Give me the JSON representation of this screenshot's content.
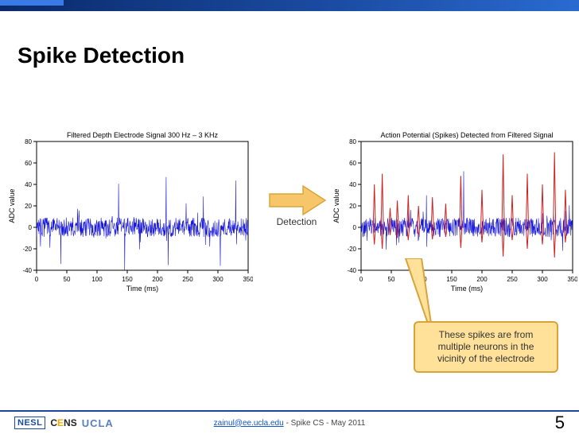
{
  "title": "Spike Detection",
  "chart_left": {
    "type": "line",
    "title": "Filtered Depth Electrode Signal 300 Hz – 3 KHz",
    "xlabel": "Time (ms)",
    "ylabel": "ADC value",
    "title_fontsize": 9,
    "label_fontsize": 9,
    "tick_fontsize": 8,
    "xlim": [
      0,
      350
    ],
    "ylim": [
      -40,
      80
    ],
    "xtick_step": 50,
    "ytick_step": 20,
    "line_color": "#1818d8",
    "line_width": 0.6,
    "background_color": "#ffffff",
    "border_color": "#000000"
  },
  "chart_right": {
    "type": "line",
    "title": "Action Potential (Spikes) Detected from Filtered Signal",
    "xlabel": "Time (ms)",
    "ylabel": "ADC value",
    "title_fontsize": 9,
    "label_fontsize": 9,
    "tick_fontsize": 8,
    "xlim": [
      0,
      350
    ],
    "ylim": [
      -40,
      80
    ],
    "xtick_step": 50,
    "ytick_step": 20,
    "line_color": "#1818d8",
    "spike_color": "#cc2222",
    "line_width": 0.6,
    "spike_width": 1.0,
    "background_color": "#ffffff",
    "border_color": "#000000",
    "spike_positions_ms": [
      22,
      35,
      48,
      60,
      78,
      95,
      118,
      140,
      165,
      200,
      235,
      250,
      275,
      300,
      320,
      338
    ],
    "spike_heights": [
      40,
      50,
      18,
      25,
      30,
      20,
      28,
      22,
      48,
      35,
      68,
      30,
      50,
      40,
      70,
      35
    ]
  },
  "arrow": {
    "label": "Detection",
    "fill_color": "#f7c66b",
    "text_color": "#333333",
    "fontsize": 12
  },
  "callout": {
    "text": "These spikes are from multiple neurons in the vicinity of the electrode",
    "bg_color": "#ffe19a",
    "border_color": "#d7a33a",
    "fontsize": 12
  },
  "footer": {
    "link_text": "zainul@ee.ucla.edu",
    "tail_text": " - Spike CS - May  2011",
    "page_number": "5",
    "logos": {
      "nesl": "NESL",
      "cens_prefix": "C",
      "cens_e": "E",
      "cens_suffix": "NS",
      "ucla": "UCLA"
    }
  },
  "colors": {
    "topbar_gradient": [
      "#0a2a6a",
      "#1a4aa0",
      "#2a6ad0"
    ],
    "footer_border": "#1a4aa0"
  }
}
